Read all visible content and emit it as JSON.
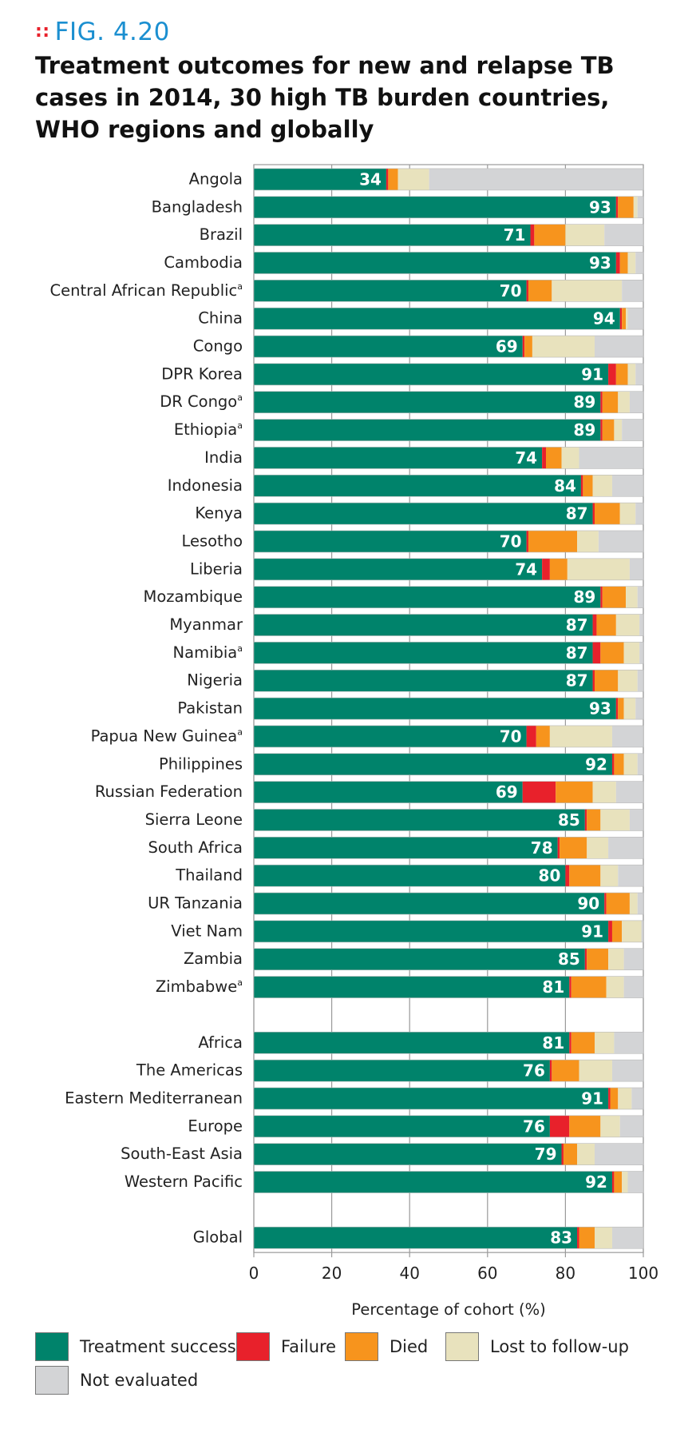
{
  "figure_label": "FIG. 4.20",
  "title": "Treatment outcomes for new and relapse TB cases in 2014, 30 high TB burden countries, WHO regions and globally",
  "colors": {
    "success": "#00836b",
    "failure": "#e8212b",
    "died": "#f7941d",
    "lost": "#e8e2bd",
    "not_evaluated": "#d3d4d6",
    "fig_label": "#1b8fd0"
  },
  "chart_data": {
    "type": "bar",
    "orientation": "horizontal",
    "stacked": true,
    "xlabel": "Percentage of cohort (%)",
    "xlim": [
      0,
      100
    ],
    "xticks": [
      0,
      20,
      40,
      60,
      80,
      100
    ],
    "grid": true,
    "legend_position": "bottom",
    "series_names": [
      "Treatment success",
      "Failure",
      "Died",
      "Lost to follow-up",
      "Not evaluated"
    ],
    "groups": [
      {
        "rows": [
          {
            "label": "Angola",
            "sup": "",
            "values": [
              34,
              0.5,
              2.5,
              8,
              55
            ]
          },
          {
            "label": "Bangladesh",
            "sup": "",
            "values": [
              93,
              0.5,
              4,
              1,
              1.5
            ]
          },
          {
            "label": "Brazil",
            "sup": "",
            "values": [
              71,
              1,
              8,
              10,
              10
            ]
          },
          {
            "label": "Cambodia",
            "sup": "",
            "values": [
              93,
              1,
              2,
              2,
              2
            ]
          },
          {
            "label": "Central African Republic",
            "sup": "a",
            "values": [
              70,
              0.5,
              6,
              18,
              5.5
            ]
          },
          {
            "label": "China",
            "sup": "",
            "values": [
              94,
              0.5,
              1,
              0.5,
              4
            ]
          },
          {
            "label": "Congo",
            "sup": "",
            "values": [
              69,
              0.5,
              2,
              16,
              12.5
            ]
          },
          {
            "label": "DPR Korea",
            "sup": "",
            "values": [
              91,
              2,
              3,
              2,
              2
            ]
          },
          {
            "label": "DR Congo",
            "sup": "a",
            "values": [
              89,
              0.5,
              4,
              3,
              3.5
            ]
          },
          {
            "label": "Ethiopia",
            "sup": "a",
            "values": [
              89,
              0.5,
              3,
              2,
              5.5
            ]
          },
          {
            "label": "India",
            "sup": "",
            "values": [
              74,
              1,
              4,
              4.5,
              16.5
            ]
          },
          {
            "label": "Indonesia",
            "sup": "",
            "values": [
              84,
              0.5,
              2.5,
              5,
              8
            ]
          },
          {
            "label": "Kenya",
            "sup": "",
            "values": [
              87,
              0.5,
              6.5,
              4,
              2
            ]
          },
          {
            "label": "Lesotho",
            "sup": "",
            "values": [
              70,
              0.5,
              12.5,
              5.5,
              11.5
            ]
          },
          {
            "label": "Liberia",
            "sup": "",
            "values": [
              74,
              2,
              4.5,
              16,
              3.5
            ]
          },
          {
            "label": "Mozambique",
            "sup": "",
            "values": [
              89,
              0.5,
              6,
              3,
              1.5
            ]
          },
          {
            "label": "Myanmar",
            "sup": "",
            "values": [
              87,
              1,
              5,
              6,
              1
            ]
          },
          {
            "label": "Namibia",
            "sup": "a",
            "values": [
              87,
              2,
              6,
              4,
              1
            ]
          },
          {
            "label": "Nigeria",
            "sup": "",
            "values": [
              87,
              0.5,
              6,
              5,
              1.5
            ]
          },
          {
            "label": "Pakistan",
            "sup": "",
            "values": [
              93,
              0.5,
              1.5,
              3,
              2
            ]
          },
          {
            "label": "Papua New Guinea",
            "sup": "a",
            "values": [
              70,
              2.5,
              3.5,
              16,
              8
            ]
          },
          {
            "label": "Philippines",
            "sup": "",
            "values": [
              92,
              0.5,
              2.5,
              3.5,
              1.5
            ]
          },
          {
            "label": "Russian Federation",
            "sup": "",
            "values": [
              69,
              8.5,
              9.5,
              6,
              7
            ]
          },
          {
            "label": "Sierra Leone",
            "sup": "",
            "values": [
              85,
              0.5,
              3.5,
              7.5,
              3.5
            ]
          },
          {
            "label": "South Africa",
            "sup": "",
            "values": [
              78,
              0.5,
              7,
              5.5,
              9
            ]
          },
          {
            "label": "Thailand",
            "sup": "",
            "values": [
              80,
              1,
              8,
              4.5,
              6.5
            ]
          },
          {
            "label": "UR Tanzania",
            "sup": "",
            "values": [
              90,
              0.5,
              6,
              2,
              1.5
            ]
          },
          {
            "label": "Viet Nam",
            "sup": "",
            "values": [
              91,
              1,
              2.5,
              5,
              0.5
            ]
          },
          {
            "label": "Zambia",
            "sup": "",
            "values": [
              85,
              0.5,
              5.5,
              4,
              5
            ]
          },
          {
            "label": "Zimbabwe",
            "sup": "a",
            "values": [
              81,
              0.5,
              9,
              4.5,
              5
            ]
          }
        ]
      },
      {
        "rows": [
          {
            "label": "Africa",
            "sup": "",
            "values": [
              81,
              0.5,
              6,
              5,
              7.5
            ]
          },
          {
            "label": "The Americas",
            "sup": "",
            "values": [
              76,
              0.5,
              7,
              8.5,
              8
            ]
          },
          {
            "label": "Eastern Mediterranean",
            "sup": "",
            "values": [
              91,
              0.5,
              2,
              3.5,
              3
            ]
          },
          {
            "label": "Europe",
            "sup": "",
            "values": [
              76,
              5,
              8,
              5,
              6
            ]
          },
          {
            "label": "South-East Asia",
            "sup": "",
            "values": [
              79,
              0.5,
              3.5,
              4.5,
              12.5
            ]
          },
          {
            "label": "Western Pacific",
            "sup": "",
            "values": [
              92,
              0.5,
              2,
              1.5,
              4
            ]
          }
        ]
      },
      {
        "rows": [
          {
            "label": "Global",
            "sup": "",
            "values": [
              83,
              0.5,
              4,
              4.5,
              8
            ]
          }
        ]
      }
    ]
  }
}
